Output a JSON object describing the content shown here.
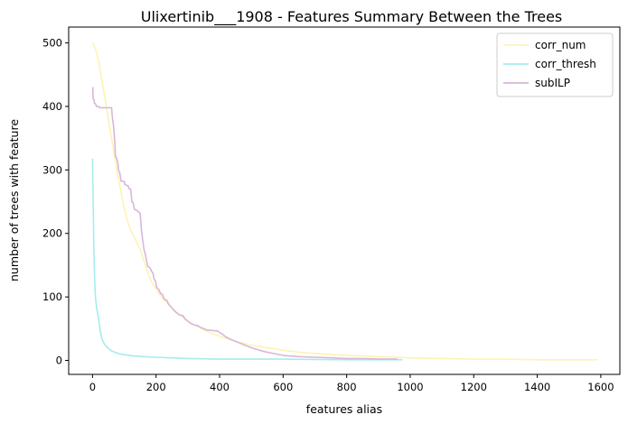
{
  "chart_data": {
    "type": "line",
    "title": "Ulixertinib___1908 - Features Summary Between the Trees",
    "xlabel": "features alias",
    "ylabel": "number of trees with feature",
    "xlim": [
      -75,
      1660
    ],
    "ylim": [
      -22,
      525
    ],
    "xticks": [
      0,
      200,
      400,
      600,
      800,
      1000,
      1200,
      1400,
      1600
    ],
    "yticks": [
      0,
      100,
      200,
      300,
      400,
      500
    ],
    "grid": false,
    "legend_position": "top-right",
    "series": [
      {
        "name": "corr_num",
        "color": "#fff2b3",
        "points": [
          [
            0,
            500
          ],
          [
            10,
            490
          ],
          [
            20,
            470
          ],
          [
            30,
            440
          ],
          [
            40,
            410
          ],
          [
            50,
            380
          ],
          [
            60,
            350
          ],
          [
            70,
            320
          ],
          [
            80,
            290
          ],
          [
            90,
            265
          ],
          [
            100,
            240
          ],
          [
            110,
            220
          ],
          [
            120,
            205
          ],
          [
            130,
            195
          ],
          [
            140,
            185
          ],
          [
            150,
            175
          ],
          [
            160,
            160
          ],
          [
            170,
            145
          ],
          [
            180,
            130
          ],
          [
            190,
            120
          ],
          [
            200,
            112
          ],
          [
            220,
            98
          ],
          [
            240,
            88
          ],
          [
            260,
            78
          ],
          [
            280,
            70
          ],
          [
            300,
            62
          ],
          [
            320,
            56
          ],
          [
            350,
            48
          ],
          [
            400,
            38
          ],
          [
            450,
            30
          ],
          [
            500,
            24
          ],
          [
            550,
            20
          ],
          [
            600,
            16
          ],
          [
            650,
            13
          ],
          [
            700,
            11
          ],
          [
            800,
            8
          ],
          [
            900,
            6
          ],
          [
            1000,
            4
          ],
          [
            1100,
            3
          ],
          [
            1200,
            2
          ],
          [
            1300,
            2
          ],
          [
            1400,
            1
          ],
          [
            1500,
            1
          ],
          [
            1590,
            1
          ]
        ]
      },
      {
        "name": "corr_thresh",
        "color": "#a6ecec",
        "points": [
          [
            0,
            318
          ],
          [
            2,
            250
          ],
          [
            4,
            180
          ],
          [
            6,
            140
          ],
          [
            8,
            110
          ],
          [
            10,
            95
          ],
          [
            14,
            80
          ],
          [
            18,
            70
          ],
          [
            22,
            55
          ],
          [
            26,
            42
          ],
          [
            30,
            34
          ],
          [
            35,
            28
          ],
          [
            40,
            24
          ],
          [
            50,
            19
          ],
          [
            60,
            15
          ],
          [
            70,
            13
          ],
          [
            80,
            11
          ],
          [
            100,
            9
          ],
          [
            130,
            7
          ],
          [
            160,
            6
          ],
          [
            200,
            5
          ],
          [
            250,
            4
          ],
          [
            300,
            3
          ],
          [
            400,
            2
          ],
          [
            600,
            2
          ],
          [
            800,
            1
          ],
          [
            975,
            1
          ]
        ]
      },
      {
        "name": "subILP",
        "color": "#d7b7d9",
        "points": [
          [
            0,
            430
          ],
          [
            1,
            430
          ],
          [
            2,
            412
          ],
          [
            5,
            410
          ],
          [
            6,
            405
          ],
          [
            10,
            404
          ],
          [
            12,
            400
          ],
          [
            20,
            400
          ],
          [
            22,
            398
          ],
          [
            60,
            398
          ],
          [
            62,
            385
          ],
          [
            66,
            370
          ],
          [
            70,
            345
          ],
          [
            72,
            322
          ],
          [
            76,
            318
          ],
          [
            80,
            310
          ],
          [
            82,
            300
          ],
          [
            86,
            295
          ],
          [
            90,
            282
          ],
          [
            100,
            282
          ],
          [
            102,
            277
          ],
          [
            112,
            275
          ],
          [
            116,
            270
          ],
          [
            120,
            270
          ],
          [
            124,
            250
          ],
          [
            128,
            248
          ],
          [
            132,
            238
          ],
          [
            136,
            237
          ],
          [
            140,
            236
          ],
          [
            150,
            232
          ],
          [
            152,
            220
          ],
          [
            154,
            205
          ],
          [
            158,
            190
          ],
          [
            162,
            175
          ],
          [
            166,
            168
          ],
          [
            170,
            158
          ],
          [
            174,
            148
          ],
          [
            178,
            147
          ],
          [
            182,
            145
          ],
          [
            186,
            140
          ],
          [
            190,
            138
          ],
          [
            194,
            128
          ],
          [
            198,
            125
          ],
          [
            202,
            115
          ],
          [
            208,
            112
          ],
          [
            215,
            105
          ],
          [
            220,
            104
          ],
          [
            226,
            96
          ],
          [
            234,
            95
          ],
          [
            240,
            88
          ],
          [
            248,
            84
          ],
          [
            254,
            80
          ],
          [
            262,
            76
          ],
          [
            272,
            72
          ],
          [
            286,
            70
          ],
          [
            292,
            65
          ],
          [
            300,
            62
          ],
          [
            310,
            58
          ],
          [
            320,
            56
          ],
          [
            330,
            55
          ],
          [
            340,
            52
          ],
          [
            350,
            50
          ],
          [
            360,
            48
          ],
          [
            380,
            47
          ],
          [
            395,
            46
          ],
          [
            400,
            44
          ],
          [
            410,
            41
          ],
          [
            420,
            37
          ],
          [
            440,
            32
          ],
          [
            460,
            28
          ],
          [
            480,
            24
          ],
          [
            500,
            20
          ],
          [
            520,
            17
          ],
          [
            540,
            14
          ],
          [
            560,
            12
          ],
          [
            580,
            10
          ],
          [
            600,
            8
          ],
          [
            620,
            7
          ],
          [
            650,
            6
          ],
          [
            700,
            5
          ],
          [
            750,
            4
          ],
          [
            800,
            3
          ],
          [
            850,
            3
          ],
          [
            900,
            2
          ],
          [
            960,
            2
          ]
        ]
      }
    ]
  }
}
